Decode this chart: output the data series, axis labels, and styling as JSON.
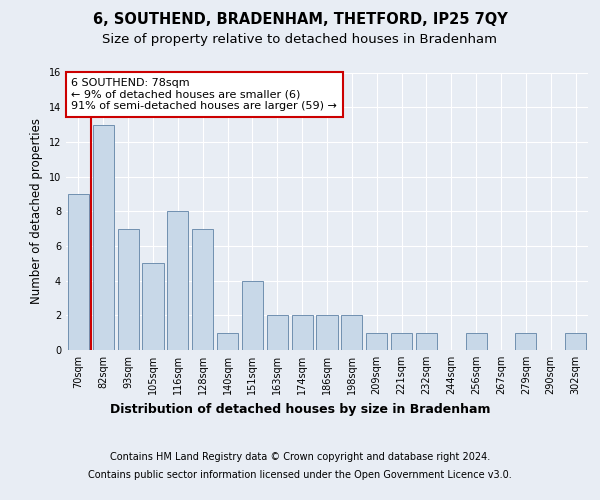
{
  "title": "6, SOUTHEND, BRADENHAM, THETFORD, IP25 7QY",
  "subtitle": "Size of property relative to detached houses in Bradenham",
  "xlabel_bottom": "Distribution of detached houses by size in Bradenham",
  "ylabel": "Number of detached properties",
  "categories": [
    "70sqm",
    "82sqm",
    "93sqm",
    "105sqm",
    "116sqm",
    "128sqm",
    "140sqm",
    "151sqm",
    "163sqm",
    "174sqm",
    "186sqm",
    "198sqm",
    "209sqm",
    "221sqm",
    "232sqm",
    "244sqm",
    "256sqm",
    "267sqm",
    "279sqm",
    "290sqm",
    "302sqm"
  ],
  "values": [
    9,
    13,
    7,
    5,
    8,
    7,
    1,
    4,
    2,
    2,
    2,
    2,
    1,
    1,
    1,
    0,
    1,
    0,
    1,
    0,
    1
  ],
  "bar_color": "#c8d8e8",
  "bar_edge_color": "#7090b0",
  "highlight_line_color": "#cc0000",
  "annotation_line1": "6 SOUTHEND: 78sqm",
  "annotation_line2": "← 9% of detached houses are smaller (6)",
  "annotation_line3": "91% of semi-detached houses are larger (59) →",
  "annotation_box_color": "#ffffff",
  "annotation_box_edge_color": "#cc0000",
  "ylim": [
    0,
    16
  ],
  "yticks": [
    0,
    2,
    4,
    6,
    8,
    10,
    12,
    14,
    16
  ],
  "background_color": "#e8edf4",
  "plot_background_color": "#e8edf4",
  "footer_line1": "Contains HM Land Registry data © Crown copyright and database right 2024.",
  "footer_line2": "Contains public sector information licensed under the Open Government Licence v3.0.",
  "title_fontsize": 10.5,
  "subtitle_fontsize": 9.5,
  "tick_fontsize": 7,
  "ylabel_fontsize": 8.5,
  "annotation_fontsize": 8,
  "footer_fontsize": 7,
  "xlabel_fontsize": 9
}
